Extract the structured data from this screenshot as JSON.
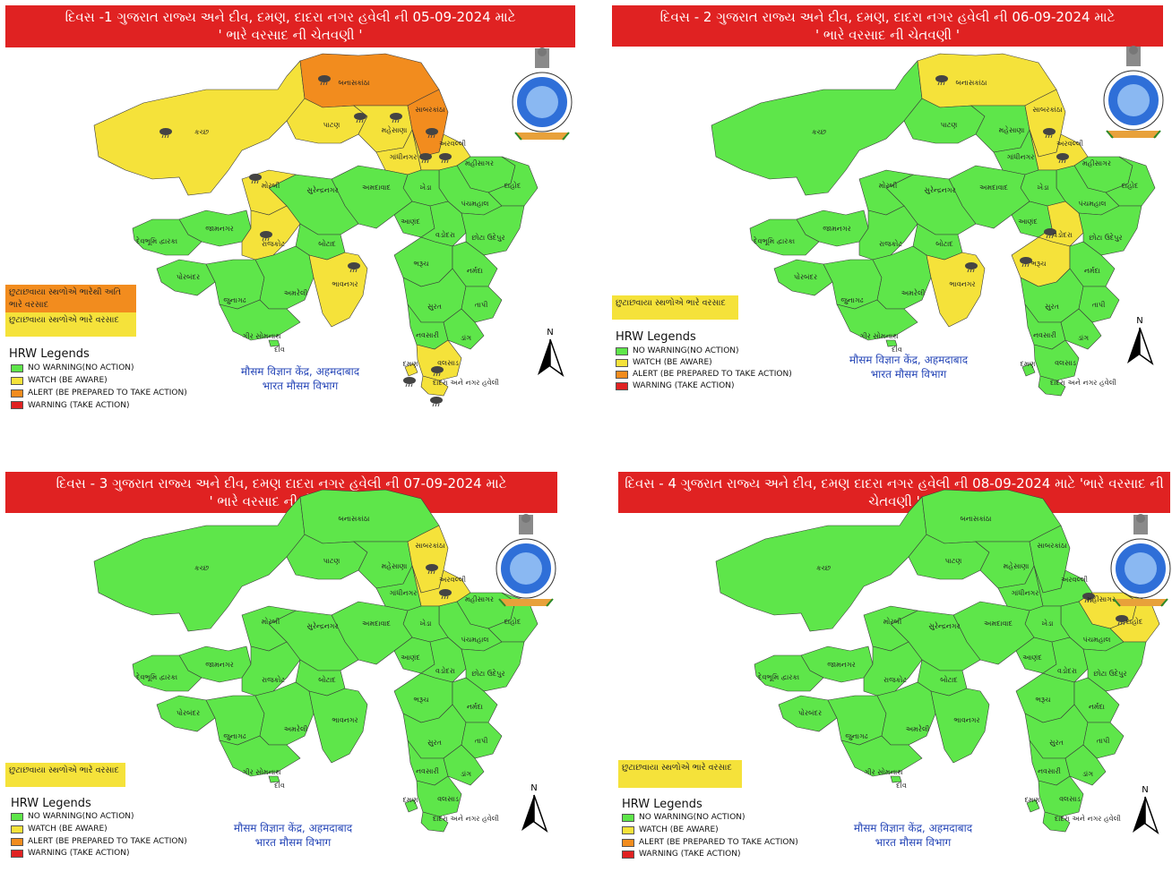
{
  "colors": {
    "no_warning": "#5ee64a",
    "watch": "#f5e23a",
    "alert": "#f28c1e",
    "warning": "#e02222",
    "banner": "#e02222",
    "center_text": "#2848b8"
  },
  "panels": [
    {
      "title_line1": "દિવસ -1 ગુજરાત રાજ્ય અને દીવ, દમણ, દાદરા નગર હવેલી ની 05-09-2024 માટે",
      "title_line2": "' ભારે વરસાદ ની ચેતવણી '",
      "callouts": [
        {
          "text": "છુટાછવાયા સ્થળોએ ભારેથી અતિ ભારે વરસાદ",
          "level": "alert"
        },
        {
          "text": "છુટાછવાયા સ્થળોએ ભારે વરસાદ",
          "level": "watch"
        }
      ],
      "district_levels": {
        "kutch": "watch",
        "banaskantha": "alert",
        "patan": "watch",
        "mehsana": "watch",
        "sabarkantha": "alert",
        "aravalli": "watch",
        "gandhinagar": "watch",
        "morbi": "watch",
        "rajkot": "watch",
        "bhavnagar": "watch",
        "valsad": "watch",
        "daman": "watch",
        "dadra": "watch"
      },
      "place_labels": {
        "kutch": "કચ્છ",
        "banaskantha": "બનાસકાંઠા",
        "patan": "પાટણ",
        "mehsana": "મહેસાણા",
        "sabarkantha": "સાબરકાંઠા",
        "aravalli": "અરવલ્લી",
        "gandhinagar": "ગાંધીનગર",
        "mahisagar": "મહીસાગર",
        "dahod": "દાહોદ",
        "panchmahal": "પંચમહાલ",
        "kheda": "ખેડા",
        "ahmedabad": "અમદાવાદ",
        "anand": "આણંદ",
        "vadodara": "વડોદરા",
        "chhotaudepur": "છોટા ઉદેપુર",
        "surendranagar": "સુરેન્દ્રનગર",
        "morbi": "મોરબી",
        "jamnagar": "જામનગર",
        "devbhumi": "દેવભૂમિ દ્વારકા",
        "rajkot": "રાજકોટ",
        "botad": "બોટાદ",
        "porbandar": "પોરબંદર",
        "junagadh": "જુનાગઢ",
        "amreli": "અમરેલી",
        "bhavnagar": "ભાવનગર",
        "girsomnath": "ગીર સોમનાથ",
        "diu": "દીવ",
        "bharuch": "ભરૂચ",
        "narmada": "નર્મદા",
        "surat": "સુરત",
        "tapi": "તાપી",
        "navsari": "નવસારી",
        "dang": "ડાંગ",
        "valsad": "વલસાડ",
        "daman": "દમણ",
        "dadra": "દાદરા અને નગર હવેલી"
      }
    },
    {
      "title_line1": "દિવસ - 2 ગુજરાત રાજ્ય અને દીવ, દમણ, દાદરા નગર હવેલી ની  06-09-2024 માટે",
      "title_line2": "' ભારે વરસાદ ની ચેતવણી '",
      "callouts": [
        {
          "text": "છુટાછવાયા સ્થળોએ ભારે વરસાદ",
          "level": "watch"
        }
      ],
      "district_levels": {
        "banaskantha": "watch",
        "sabarkantha": "watch",
        "aravalli": "watch",
        "bhavnagar": "watch",
        "vadodara": "watch",
        "bharuch": "watch"
      },
      "place_labels": {
        "kutch": "કચ્છ",
        "banaskantha": "બનાસકાંઠા",
        "patan": "પાટણ",
        "mehsana": "મહેસાણા",
        "sabarkantha": "સાબરકાંઠા",
        "aravalli": "અરવલ્લી",
        "gandhinagar": "ગાંધીનગર",
        "mahisagar": "મહીસાગર",
        "dahod": "દાહોદ",
        "panchmahal": "પંચમહાલ",
        "kheda": "ખેડા",
        "ahmedabad": "અમદાવાદ",
        "anand": "આણંદ",
        "vadodara": "વડોદરા",
        "chhotaudepur": "છોટા ઉદેપુર",
        "surendranagar": "સુરેન્દ્રનગર",
        "morbi": "મોરબી",
        "jamnagar": "જામનગર",
        "devbhumi": "દેવભૂમિ દ્વારકા",
        "rajkot": "રાજકોટ",
        "botad": "બોટાદ",
        "porbandar": "પોરબંદર",
        "junagadh": "જુનાગઢ",
        "amreli": "અમરેલી",
        "bhavnagar": "ભાવનગર",
        "girsomnath": "ગીર સોમનાથ",
        "diu": "દીવ",
        "bharuch": "ભરૂચ",
        "narmada": "નર્મદા",
        "surat": "સુરત",
        "tapi": "તાપી",
        "navsari": "નવસારી",
        "dang": "ડાંગ",
        "valsad": "વલસાડ",
        "daman": "દમણ",
        "dadra": "દાદરા અને નગર હવેલી"
      }
    },
    {
      "title_line1": "દિવસ - 3 ગુજરાત રાજ્ય અને દીવ, દમણ દાદરા નગર હવેલી ની  07-09-2024 માટે",
      "title_line2": "' ભારે વરસાદ ની ચેતવણી '",
      "callouts": [
        {
          "text": "છુટાછવાયા સ્થળોએ ભારે વરસાદ",
          "level": "watch"
        }
      ],
      "district_levels": {
        "sabarkantha": "watch",
        "aravalli": "watch"
      },
      "place_labels": {
        "kutch": "કચ્છ",
        "banaskantha": "બનાસકાંઠા",
        "patan": "પાટણ",
        "mehsana": "મહેસાણા",
        "sabarkantha": "સાબરકાંઠા",
        "aravalli": "અરવલ્લી",
        "gandhinagar": "ગાંધીનગર",
        "mahisagar": "મહીસાગર",
        "dahod": "દાહોદ",
        "panchmahal": "પંચમહાલ",
        "kheda": "ખેડા",
        "ahmedabad": "અમદાવાદ",
        "anand": "આણંદ",
        "vadodara": "વડોદરા",
        "chhotaudepur": "છોટા ઉદેપુર",
        "surendranagar": "સુરેન્દ્રનગર",
        "morbi": "મોરબી",
        "jamnagar": "જામનગર",
        "devbhumi": "દેવભૂમિ દ્વારકા",
        "rajkot": "રાજકોટ",
        "botad": "બોટાદ",
        "porbandar": "પોરબંદર",
        "junagadh": "જુનાગઢ",
        "amreli": "અમરેલી",
        "bhavnagar": "ભાવનગર",
        "girsomnath": "ગીર સોમનાથ",
        "diu": "દીવ",
        "bharuch": "ભરૂચ",
        "narmada": "નર્મદા",
        "surat": "સુરત",
        "tapi": "તાપી",
        "navsari": "નવસારી",
        "dang": "ડાંગ",
        "valsad": "વલસાડ",
        "daman": "દમણ",
        "dadra": "દાદરા અને નગર હવેલી"
      }
    },
    {
      "title_line1": "દિવસ - 4  ગુજરાત રાજ્ય અને દીવ, દમણ દાદરા નગર હવેલી ની  08-09-2024 માટે 'ભારે વરસાદ ની",
      "title_line2": "ચેતવણી '",
      "callouts": [
        {
          "text": "છુટાછવાયા સ્થળોએ ભારે વરસાદ",
          "level": "watch"
        }
      ],
      "district_levels": {
        "mahisagar": "watch",
        "dahod": "watch"
      },
      "place_labels": {
        "kutch": "કચ્છ",
        "banaskantha": "બનાસકાંઠા",
        "patan": "પાટણ",
        "mehsana": "મહેસાણા",
        "sabarkantha": "સાબરકાંઠા",
        "aravalli": "અરવલ્લી",
        "gandhinagar": "ગાંધીનગર",
        "mahisagar": "મહીસાગર",
        "dahod": "દાહોદ",
        "panchmahal": "પંચમહાલ",
        "kheda": "ખેડા",
        "ahmedabad": "અમદાવાદ",
        "anand": "આણંદ",
        "vadodara": "વડોદરા",
        "chhotaudepur": "છોટા ઉદેપુર",
        "surendranagar": "સુરેન્દ્રનગર",
        "morbi": "મોરબી",
        "jamnagar": "જામનગર",
        "devbhumi": "દેવભૂમિ દ્વારકા",
        "rajkot": "રાજકોટ",
        "botad": "બોટાદ",
        "porbandar": "પોરબંદર",
        "junagadh": "જુનાગઢ",
        "amreli": "અમરેલી",
        "bhavnagar": "ભાવનગર",
        "girsomnath": "ગીર સોમનાથ",
        "diu": "દીવ",
        "bharuch": "ભરૂચ",
        "narmada": "નર્મદા",
        "surat": "સુરત",
        "tapi": "તાપી",
        "navsari": "નવસારી",
        "dang": "ડાંગ",
        "valsad": "વલસાડ",
        "daman": "દમણ",
        "dadra": "દાદરા અને નગર હવેલી"
      }
    }
  ],
  "legend": {
    "title": "HRW Legends",
    "items": [
      {
        "label": "NO WARNING(NO ACTION)",
        "level": "no_warning"
      },
      {
        "label": "WATCH (BE AWARE)",
        "level": "watch"
      },
      {
        "label": "ALERT (BE PREPARED TO TAKE ACTION)",
        "level": "alert"
      },
      {
        "label": "WARNING (TAKE ACTION)",
        "level": "warning"
      }
    ]
  },
  "center": {
    "line1": "मौसम विज्ञान केंद्र, अहमदाबाद",
    "line2": "भारत मौसम विभाग"
  },
  "north_label": "N",
  "icons": [
    "rain-cloud-icon",
    "imd-emblem-icon",
    "north-arrow-icon"
  ]
}
